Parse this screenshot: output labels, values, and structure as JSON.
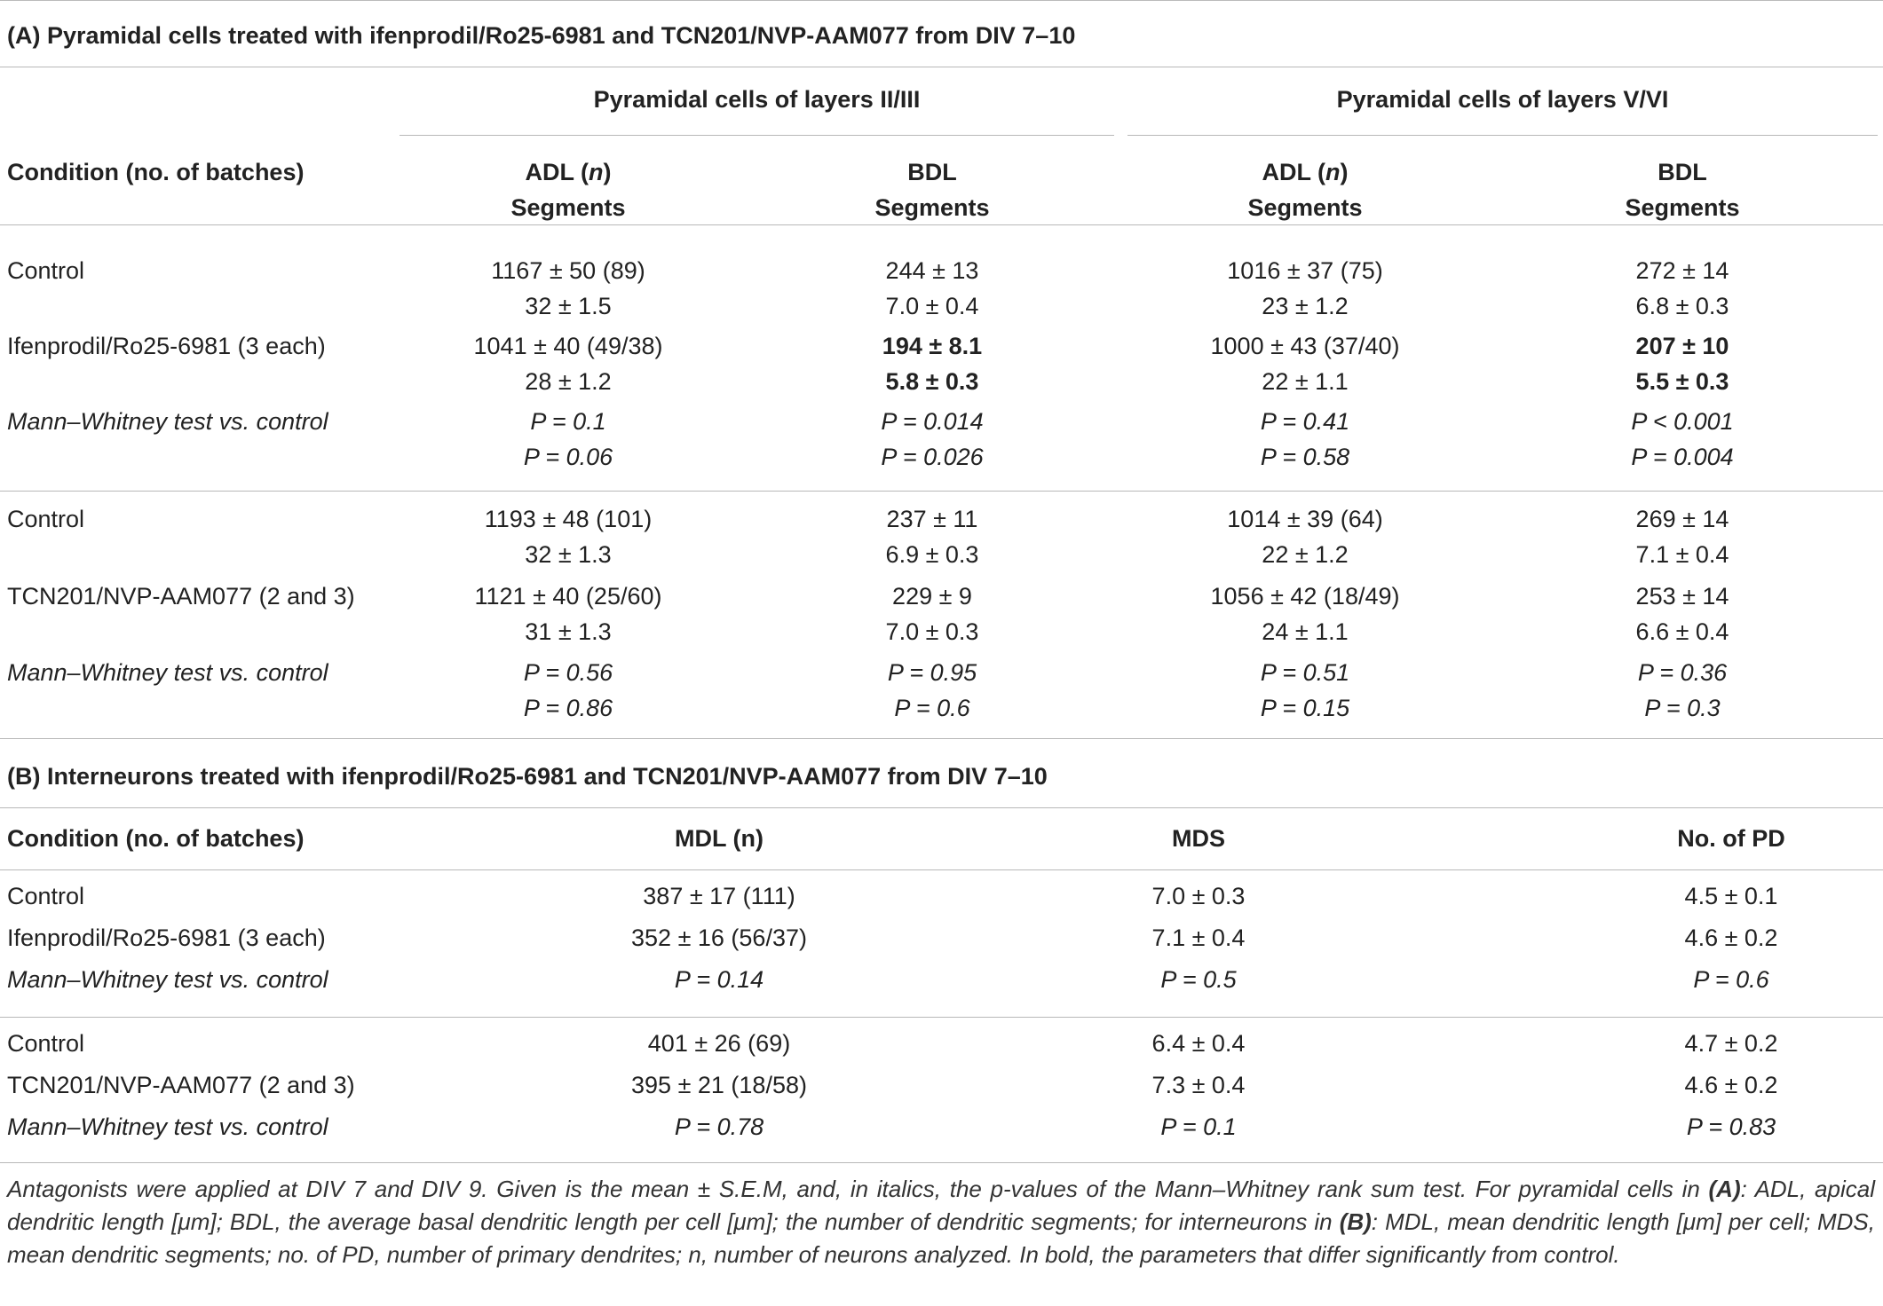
{
  "sectionA": {
    "title": "(A) Pyramidal cells treated with ifenprodil/Ro25-6981 and TCN201/NVP-AAM077 from DIV 7–10",
    "group1": "Pyramidal cells of layers II/III",
    "group2": "Pyramidal cells of layers V/VI",
    "condition_header": "Condition (no. of batches)",
    "adl_header_line1": "ADL (",
    "adl_header_n": "n",
    "adl_header_close": ")",
    "segments_header": "Segments",
    "bdl_header": "BDL",
    "rows": [
      {
        "label": "Control",
        "italic": false,
        "bold": false,
        "c1": [
          "1167 ± 50 (89)",
          "32 ± 1.5"
        ],
        "c2": [
          "244 ± 13",
          "7.0 ± 0.4"
        ],
        "c3": [
          "1016 ± 37 (75)",
          "23 ± 1.2"
        ],
        "c4": [
          "272 ± 14",
          "6.8 ± 0.3"
        ]
      },
      {
        "label": "Ifenprodil/Ro25-6981 (3 each)",
        "italic": false,
        "c1": [
          "1041 ± 40 (49/38)",
          "28 ± 1.2"
        ],
        "c2": [
          "194 ± 8.1",
          "5.8 ± 0.3"
        ],
        "c3": [
          "1000 ± 43 (37/40)",
          "22 ± 1.1"
        ],
        "c4": [
          "207 ± 10",
          "5.5 ± 0.3"
        ]
      },
      {
        "label": "Mann–Whitney test vs. control",
        "italic": true,
        "c1": [
          "P = 0.1",
          "P = 0.06"
        ],
        "c2": [
          "P = 0.014",
          "P = 0.026"
        ],
        "c3": [
          "P = 0.41",
          "P = 0.58"
        ],
        "c4": [
          "P < 0.001",
          "P = 0.004"
        ]
      },
      {
        "label": "Control",
        "italic": false,
        "c1": [
          "1193 ± 48 (101)",
          "32 ± 1.3"
        ],
        "c2": [
          "237 ± 11",
          "6.9 ± 0.3"
        ],
        "c3": [
          "1014 ± 39 (64)",
          "22 ± 1.2"
        ],
        "c4": [
          "269 ± 14",
          "7.1 ± 0.4"
        ]
      },
      {
        "label": "TCN201/NVP-AAM077 (2 and 3)",
        "italic": false,
        "c1": [
          "1121 ± 40 (25/60)",
          "31 ± 1.3"
        ],
        "c2": [
          "229 ± 9",
          "7.0 ± 0.3"
        ],
        "c3": [
          "1056 ± 42 (18/49)",
          "24 ± 1.1"
        ],
        "c4": [
          "253 ± 14",
          "6.6 ± 0.4"
        ]
      },
      {
        "label": "Mann–Whitney test vs. control",
        "italic": true,
        "c1": [
          "P = 0.56",
          "P = 0.86"
        ],
        "c2": [
          "P = 0.95",
          "P = 0.6"
        ],
        "c3": [
          "P = 0.51",
          "P = 0.15"
        ],
        "c4": [
          "P = 0.36",
          "P = 0.3"
        ]
      }
    ]
  },
  "sectionB": {
    "title": "(B) Interneurons treated with ifenprodil/Ro25-6981 and TCN201/NVP-AAM077 from DIV 7–10",
    "headers": [
      "Condition (no. of batches)",
      "MDL (n)",
      "MDS",
      "No. of PD"
    ],
    "rows": [
      {
        "label": "Control",
        "italic": false,
        "v": [
          "387 ± 17 (111)",
          "7.0 ± 0.3",
          "4.5 ± 0.1"
        ]
      },
      {
        "label": "Ifenprodil/Ro25-6981 (3 each)",
        "italic": false,
        "v": [
          "352 ± 16 (56/37)",
          "7.1 ± 0.4",
          "4.6 ± 0.2"
        ]
      },
      {
        "label": "Mann–Whitney test vs. control",
        "italic": true,
        "v": [
          "P = 0.14",
          "P = 0.5",
          "P = 0.6"
        ]
      },
      {
        "label": "Control",
        "italic": false,
        "v": [
          "401 ± 26 (69)",
          "6.4 ± 0.4",
          "4.7 ± 0.2"
        ]
      },
      {
        "label": "TCN201/NVP-AAM077 (2 and 3)",
        "italic": false,
        "v": [
          "395 ± 21 (18/58)",
          "7.3 ± 0.4",
          "4.6 ± 0.2"
        ]
      },
      {
        "label": "Mann–Whitney test vs. control",
        "italic": true,
        "v": [
          "P = 0.78",
          "P = 0.1",
          "P = 0.83"
        ]
      }
    ]
  },
  "footnote": {
    "p1": "Antagonists were applied at DIV 7 and DIV 9. Given is the mean ± S.E.M, and, in italics, the p-values of the Mann–Whitney rank sum test. For pyramidal cells in ",
    "a": "(A)",
    "p2": ": ADL, apical dendritic length [μm]; BDL, the average basal dendritic length per cell [μm]; the number of dendritic segments; for interneurons in ",
    "b": "(B)",
    "p3": ": MDL, mean dendritic length [μm] per cell; MDS, mean dendritic segments; no. of PD, number of primary dendrites; n, number of neurons analyzed. In bold, the parameters that differ significantly from control."
  }
}
